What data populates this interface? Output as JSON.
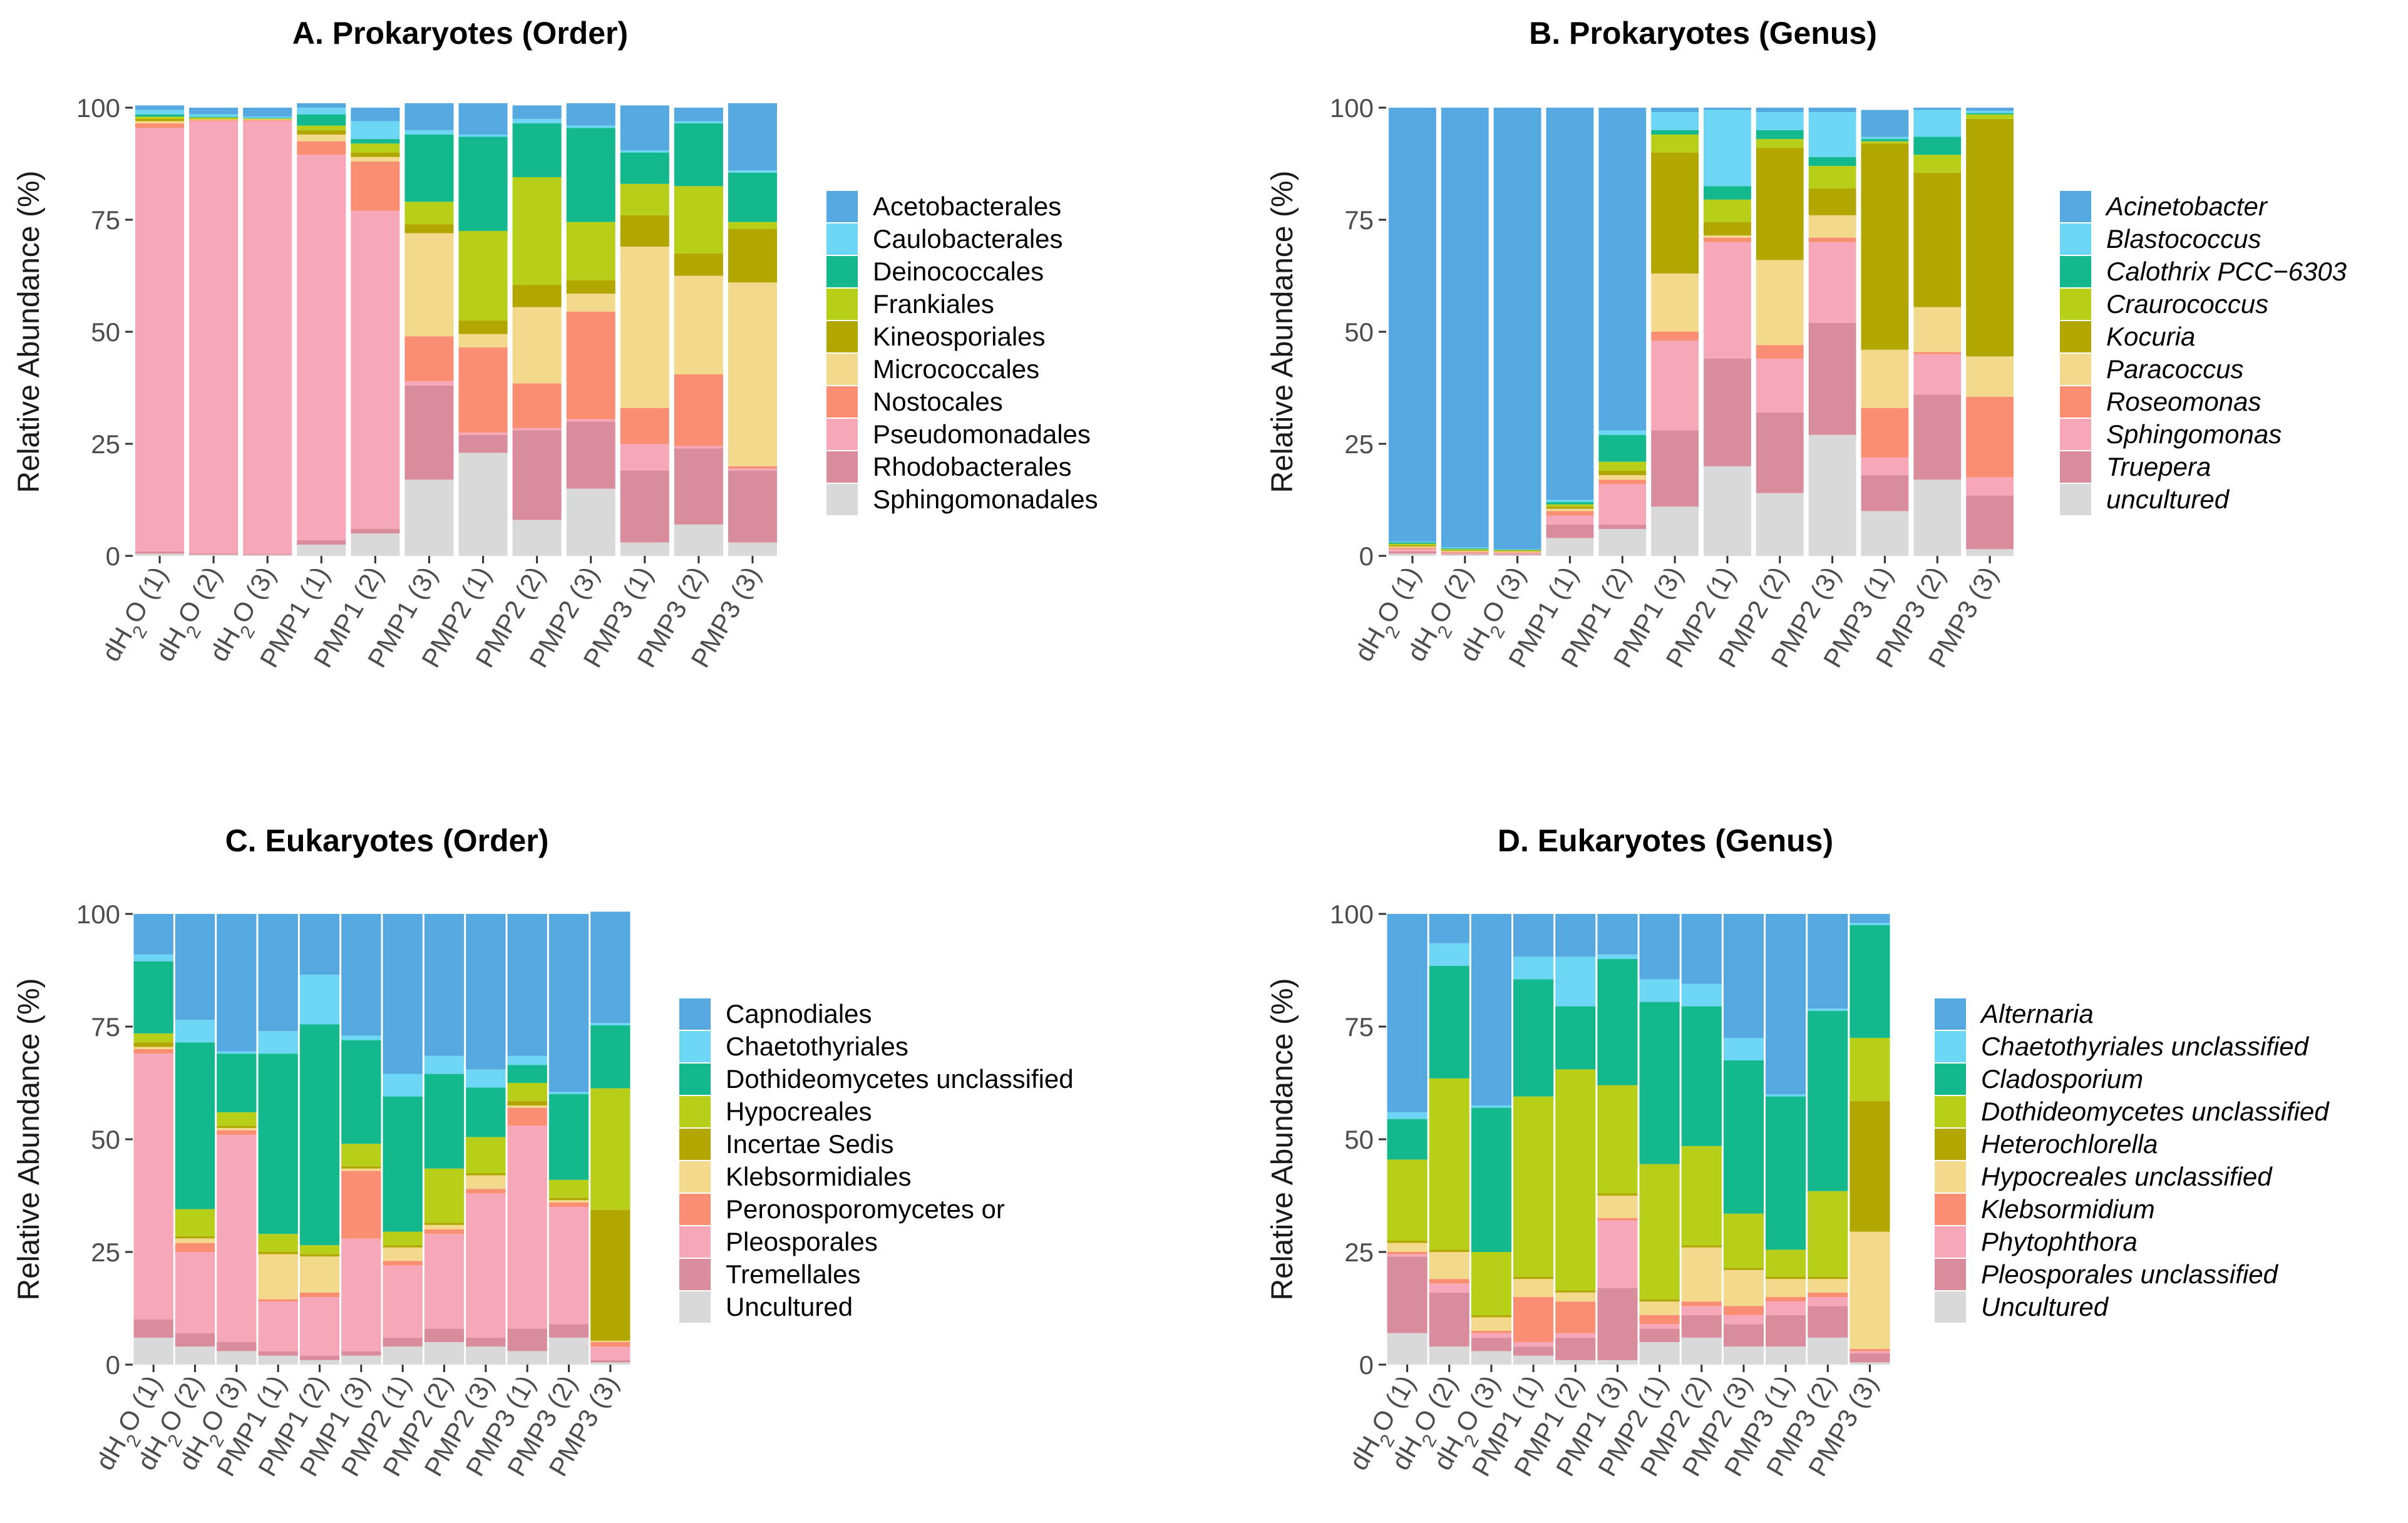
{
  "chart_data": [
    {
      "type": "bar",
      "stacked": true,
      "title": "A. Prokaryotes (Order)",
      "ylabel": "Relative Abundance (%)",
      "xlabel": "",
      "ylim": [
        0,
        100
      ],
      "yticks": [
        "0",
        "25",
        "50",
        "75",
        "100"
      ],
      "legend_position": "right",
      "italic_legend": false,
      "categories": [
        "dH2O (1)",
        "dH2O (2)",
        "dH2O (3)",
        "PMP1 (1)",
        "PMP1 (2)",
        "PMP1 (3)",
        "PMP2 (1)",
        "PMP2 (2)",
        "PMP2 (3)",
        "PMP3 (1)",
        "PMP3 (2)",
        "PMP3 (3)"
      ],
      "series": [
        {
          "name": "Sphingomonadales",
          "color": "#D9D9D9",
          "values": [
            0.5,
            0.3,
            0.2,
            2.5,
            5,
            17,
            23,
            8,
            15,
            3,
            7,
            3
          ]
        },
        {
          "name": "Rhodobacterales",
          "color": "#D98C9B",
          "values": [
            0.5,
            0.3,
            0.2,
            1,
            1,
            21,
            4,
            20,
            15,
            16,
            17,
            16
          ]
        },
        {
          "name": "Pseudomonadales",
          "color": "#F7A8B8",
          "values": [
            94.5,
            96.4,
            96.6,
            86,
            71,
            1,
            0.5,
            0.5,
            0.5,
            6,
            0.5,
            0.5
          ]
        },
        {
          "name": "Nostocales",
          "color": "#F98E73",
          "values": [
            1,
            0.2,
            0.2,
            3,
            11,
            10,
            19,
            10,
            24,
            8,
            16,
            0.5
          ]
        },
        {
          "name": "Micrococcales",
          "color": "#F2D98C",
          "values": [
            0.5,
            0.2,
            0.2,
            1.5,
            1,
            23,
            3,
            17,
            4,
            36,
            22,
            41
          ]
        },
        {
          "name": "Kineosporiales",
          "color": "#B2A600",
          "values": [
            0.5,
            0.2,
            0.1,
            1,
            1,
            2,
            3,
            5,
            3,
            7,
            5,
            12
          ]
        },
        {
          "name": "Frankiales",
          "color": "#B8CF1A",
          "values": [
            0.5,
            0.2,
            0.1,
            1,
            2,
            5,
            20,
            24,
            13,
            7,
            15,
            1.5
          ]
        },
        {
          "name": "Deinococcales",
          "color": "#13B88C",
          "values": [
            0.5,
            0.2,
            0.1,
            2.5,
            1,
            15,
            21,
            12,
            21,
            7,
            14,
            11
          ]
        },
        {
          "name": "Caulobacterales",
          "color": "#6ED6F5",
          "values": [
            1,
            0.5,
            0.3,
            1.5,
            4,
            1,
            0.5,
            1,
            0.5,
            0.5,
            0.5,
            0.5
          ]
        },
        {
          "name": "Acetobacterales",
          "color": "#56A8E0",
          "values": [
            1,
            1.5,
            2,
            1,
            3,
            6,
            7,
            3,
            5,
            10,
            3,
            15
          ]
        }
      ]
    },
    {
      "type": "bar",
      "stacked": true,
      "title": "B. Prokaryotes (Genus)",
      "ylabel": "Relative Abundance (%)",
      "xlabel": "",
      "ylim": [
        0,
        100
      ],
      "yticks": [
        "0",
        "25",
        "50",
        "75",
        "100"
      ],
      "legend_position": "right",
      "italic_legend": true,
      "categories": [
        "dH2O (1)",
        "dH2O (2)",
        "dH2O (3)",
        "PMP1 (1)",
        "PMP1 (2)",
        "PMP1 (3)",
        "PMP2 (1)",
        "PMP2 (2)",
        "PMP2 (3)",
        "PMP3 (1)",
        "PMP3 (2)",
        "PMP3 (3)"
      ],
      "series": [
        {
          "name": "uncultured",
          "color": "#D9D9D9",
          "values": [
            0.5,
            0.3,
            0.2,
            4,
            6,
            11,
            20,
            14,
            27,
            10,
            17,
            1.5
          ]
        },
        {
          "name": "Truepera",
          "color": "#D98C9B",
          "values": [
            0.5,
            0.2,
            0.2,
            3,
            1,
            17,
            24,
            18,
            25,
            8,
            19,
            12
          ]
        },
        {
          "name": "Sphingomonas",
          "color": "#F7A8B8",
          "values": [
            0.5,
            0.2,
            0.2,
            2,
            9,
            20,
            26,
            12,
            18,
            4,
            9,
            4
          ]
        },
        {
          "name": "Roseomonas",
          "color": "#F98E73",
          "values": [
            0.3,
            0.2,
            0.2,
            1,
            1,
            2,
            1,
            3,
            1,
            11,
            0.5,
            18
          ]
        },
        {
          "name": "Paracoccus",
          "color": "#F2D98C",
          "values": [
            0.3,
            0.2,
            0.2,
            0.5,
            1,
            13,
            0.5,
            19,
            5,
            13,
            10,
            9
          ]
        },
        {
          "name": "Kocuria",
          "color": "#B2A600",
          "values": [
            0.3,
            0.2,
            0.2,
            0.5,
            1,
            27,
            3,
            25,
            6,
            46,
            30,
            53
          ]
        },
        {
          "name": "Craurococcus",
          "color": "#B8CF1A",
          "values": [
            0.3,
            0.2,
            0.1,
            0.5,
            2,
            4,
            5,
            2,
            5,
            0.5,
            4,
            1
          ]
        },
        {
          "name": "Calothrix PCC−6303",
          "color": "#13B88C",
          "values": [
            0.3,
            0.2,
            0.1,
            0.5,
            6,
            1,
            3,
            2,
            2,
            0.5,
            4,
            0.3
          ]
        },
        {
          "name": "Blastococcus",
          "color": "#6ED6F5",
          "values": [
            0.2,
            0.2,
            0.1,
            0.5,
            1,
            4,
            17,
            4,
            10,
            0.5,
            6,
            0.5
          ]
        },
        {
          "name": "Acinetobacter",
          "color": "#56A8E0",
          "values": [
            96.8,
            98.1,
            98.5,
            87.5,
            72,
            1,
            0.5,
            1,
            1,
            6,
            0.5,
            0.7
          ]
        }
      ]
    },
    {
      "type": "bar",
      "stacked": true,
      "title": "C. Eukaryotes (Order)",
      "ylabel": "Relative Abundance (%)",
      "xlabel": "",
      "ylim": [
        0,
        100
      ],
      "yticks": [
        "0",
        "25",
        "50",
        "75",
        "100"
      ],
      "legend_position": "right",
      "italic_legend": false,
      "categories": [
        "dH2O (1)",
        "dH2O (2)",
        "dH2O (3)",
        "PMP1 (1)",
        "PMP1 (2)",
        "PMP1 (3)",
        "PMP2 (1)",
        "PMP2 (2)",
        "PMP2 (3)",
        "PMP3 (1)",
        "PMP3 (2)",
        "PMP3 (3)"
      ],
      "series": [
        {
          "name": "Uncultured",
          "color": "#D9D9D9",
          "values": [
            6,
            4,
            3,
            2,
            1,
            2,
            4,
            5,
            4,
            3,
            6,
            0.5
          ]
        },
        {
          "name": "Tremellales",
          "color": "#D98C9B",
          "values": [
            4,
            3,
            2,
            1,
            1,
            1,
            2,
            3,
            2,
            5,
            3,
            0.5
          ]
        },
        {
          "name": "Pleosporales",
          "color": "#F7A8B8",
          "values": [
            59,
            18,
            46,
            11,
            13,
            25,
            16,
            21,
            32,
            45,
            26,
            3
          ]
        },
        {
          "name": "Peronosporomycetes or",
          "color": "#F98E73",
          "values": [
            1,
            2,
            1,
            0.5,
            1,
            15,
            1,
            1,
            1,
            4,
            1,
            1
          ]
        },
        {
          "name": "Klebsormidiales",
          "color": "#F2D98C",
          "values": [
            0.5,
            1,
            0.5,
            10,
            8,
            0.5,
            3,
            1,
            3,
            0.5,
            0.5,
            0.3
          ]
        },
        {
          "name": "Incertae Sedis",
          "color": "#B2A600",
          "values": [
            1,
            0.5,
            0.5,
            0.5,
            0.5,
            0.5,
            0.5,
            0.5,
            0.5,
            1,
            0.5,
            29
          ]
        },
        {
          "name": "Hypocreales",
          "color": "#B8CF1A",
          "values": [
            2,
            6,
            3,
            4,
            2,
            5,
            3,
            12,
            8,
            4,
            4,
            27
          ]
        },
        {
          "name": "Dothideomycetes unclassified",
          "color": "#13B88C",
          "values": [
            16,
            37,
            13,
            40,
            49,
            23,
            30,
            21,
            11,
            4,
            19,
            14
          ]
        },
        {
          "name": "Chaetothyriales",
          "color": "#6ED6F5",
          "values": [
            1.5,
            5,
            0.5,
            5,
            11,
            1,
            5,
            4,
            4,
            2,
            0.5,
            0.5
          ]
        },
        {
          "name": "Capnodiales",
          "color": "#56A8E0",
          "values": [
            9,
            23.5,
            30.5,
            26,
            13.5,
            27,
            35.5,
            31.5,
            34.5,
            31.5,
            39.5,
            24.7
          ]
        }
      ]
    },
    {
      "type": "bar",
      "stacked": true,
      "title": "D. Eukaryotes (Genus)",
      "ylabel": "Relative Abundance (%)",
      "xlabel": "",
      "ylim": [
        0,
        100
      ],
      "yticks": [
        "0",
        "25",
        "50",
        "75",
        "100"
      ],
      "legend_position": "right",
      "italic_legend": true,
      "categories": [
        "dH2O (1)",
        "dH2O (2)",
        "dH2O (3)",
        "PMP1 (1)",
        "PMP1 (2)",
        "PMP1 (3)",
        "PMP2 (1)",
        "PMP2 (2)",
        "PMP2 (3)",
        "PMP3 (1)",
        "PMP3 (2)",
        "PMP3 (3)"
      ],
      "series": [
        {
          "name": "Uncultured",
          "color": "#D9D9D9",
          "values": [
            7,
            4,
            3,
            2,
            1,
            1,
            5,
            6,
            4,
            4,
            6,
            0.5
          ]
        },
        {
          "name": "Pleosporales unclassified",
          "color": "#D98C9B",
          "values": [
            17,
            12,
            3,
            2,
            5,
            16,
            3,
            5,
            5,
            7,
            7,
            2
          ]
        },
        {
          "name": "Phytophthora",
          "color": "#F7A8B8",
          "values": [
            0.5,
            2,
            1,
            1,
            1,
            15,
            1,
            2,
            2,
            3,
            2,
            0.5
          ]
        },
        {
          "name": "Klebsormidium",
          "color": "#F98E73",
          "values": [
            0.5,
            1,
            0.5,
            10,
            7,
            0.5,
            2,
            1,
            2,
            1,
            1,
            0.5
          ]
        },
        {
          "name": "Hypocreales unclassified",
          "color": "#F2D98C",
          "values": [
            2,
            6,
            3,
            4,
            2,
            5,
            3,
            12,
            8,
            4,
            3,
            26
          ]
        },
        {
          "name": "Heterochlorella",
          "color": "#B2A600",
          "values": [
            0.5,
            0.5,
            0.5,
            0.5,
            0.5,
            0.5,
            0.5,
            0.5,
            0.5,
            0.5,
            0.5,
            29
          ]
        },
        {
          "name": "Dothideomycetes unclassified",
          "color": "#B8CF1A",
          "values": [
            18,
            38,
            14,
            40,
            49,
            24,
            30,
            22,
            12,
            6,
            19,
            14
          ]
        },
        {
          "name": "Cladosporium",
          "color": "#13B88C",
          "values": [
            9,
            25,
            32,
            26,
            14,
            28,
            36,
            31,
            34,
            34,
            40,
            25
          ]
        },
        {
          "name": "Chaetothyriales unclassified",
          "color": "#6ED6F5",
          "values": [
            1.5,
            5,
            0.5,
            5,
            11,
            1,
            5,
            5,
            5,
            0.5,
            0.5,
            0.5
          ]
        },
        {
          "name": "Alternaria",
          "color": "#56A8E0",
          "values": [
            44,
            6.5,
            42.5,
            9.5,
            9.5,
            9,
            14.5,
            15.5,
            27.5,
            40,
            21,
            2
          ]
        }
      ]
    }
  ]
}
